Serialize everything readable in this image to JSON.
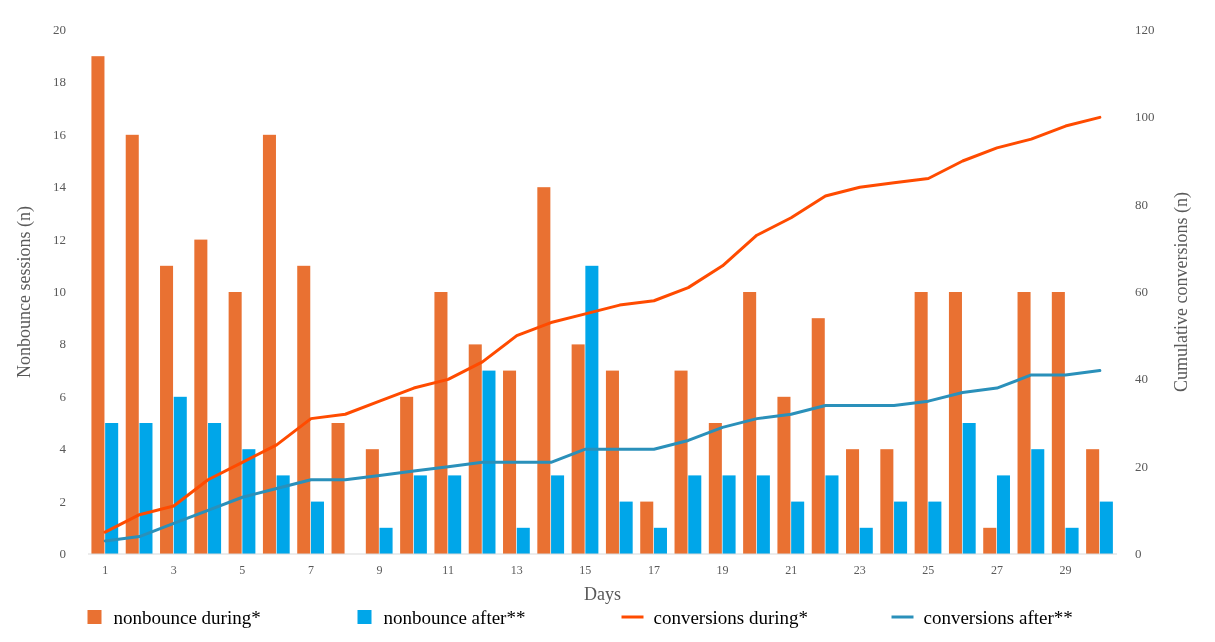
{
  "chart_data": {
    "type": "bar",
    "xlabel": "Days",
    "ylabel": "Nonbounce sessions (n)",
    "y2label": "Cumulative conversions (n)",
    "x": [
      1,
      2,
      3,
      4,
      5,
      6,
      7,
      8,
      9,
      10,
      11,
      12,
      13,
      14,
      15,
      16,
      17,
      18,
      19,
      20,
      21,
      22,
      23,
      24,
      25,
      26,
      27,
      28,
      29,
      30
    ],
    "xlim": [
      0.5,
      30.5
    ],
    "xticks": [
      1,
      3,
      5,
      7,
      9,
      11,
      13,
      15,
      17,
      19,
      21,
      23,
      25,
      27,
      29
    ],
    "series": [
      {
        "name": "nonbounce during*",
        "color": "#e97132",
        "values": [
          19,
          16,
          11,
          12,
          10,
          16,
          11,
          5,
          4,
          6,
          10,
          8,
          7,
          14,
          8,
          7,
          2,
          7,
          5,
          10,
          6,
          9,
          4,
          4,
          10,
          10,
          1,
          10,
          10,
          4
        ]
      },
      {
        "name": "nonbounce after**",
        "color": "#00a6e9",
        "values": [
          5,
          5,
          6,
          5,
          4,
          3,
          2,
          0,
          1,
          3,
          3,
          7,
          1,
          3,
          11,
          2,
          1,
          3,
          3,
          3,
          2,
          3,
          1,
          2,
          2,
          5,
          3,
          4,
          1,
          2
        ]
      },
      {
        "name": "conversions during*",
        "type": "line",
        "axis": "y2",
        "color": "#ff4b00",
        "values": [
          5,
          9,
          11,
          17,
          21,
          25,
          31,
          32,
          35,
          38,
          40,
          44,
          50,
          53,
          55,
          57,
          58,
          61,
          66,
          73,
          77,
          82,
          84,
          85,
          86,
          90,
          93,
          95,
          98,
          100
        ]
      },
      {
        "name": "conversions after**",
        "type": "line",
        "axis": "y2",
        "color": "#2a90ba",
        "values": [
          3,
          4,
          7,
          10,
          13,
          15,
          17,
          17,
          18,
          19,
          20,
          21,
          21,
          21,
          24,
          24,
          24,
          26,
          29,
          31,
          32,
          34,
          34,
          34,
          35,
          37,
          38,
          41,
          41,
          42
        ]
      }
    ],
    "ylim": [
      0,
      20
    ],
    "yticks": [
      0,
      2,
      4,
      6,
      8,
      10,
      12,
      14,
      16,
      18,
      20
    ],
    "y2lim": [
      0,
      120
    ],
    "y2ticks": [
      0,
      20,
      40,
      60,
      80,
      100,
      120
    ],
    "grid": false,
    "legend": "bottom"
  }
}
